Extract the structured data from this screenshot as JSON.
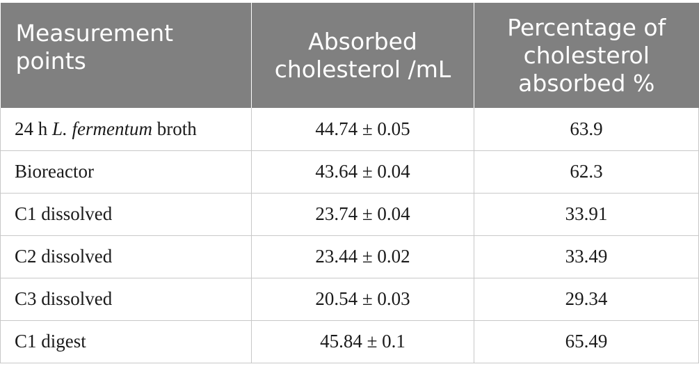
{
  "table": {
    "headers": [
      "Measurement points",
      "Absorbed cholesterol /mL",
      "Percentage of cholesterol absorbed %"
    ],
    "rows": [
      {
        "point_prefix": "24 h ",
        "point_italic": "L. fermentum",
        "point_suffix": " broth",
        "absorbed": "44.74 ± 0.05",
        "percentage": "63.9"
      },
      {
        "point_prefix": "Bioreactor",
        "point_italic": "",
        "point_suffix": "",
        "absorbed": "43.64 ± 0.04",
        "percentage": "62.3"
      },
      {
        "point_prefix": "C1 dissolved",
        "point_italic": "",
        "point_suffix": "",
        "absorbed": "23.74 ± 0.04",
        "percentage": "33.91"
      },
      {
        "point_prefix": "C2 dissolved",
        "point_italic": "",
        "point_suffix": "",
        "absorbed": "23.44 ± 0.02",
        "percentage": "33.49"
      },
      {
        "point_prefix": "C3 dissolved",
        "point_italic": "",
        "point_suffix": "",
        "absorbed": "20.54 ± 0.03",
        "percentage": "29.34"
      },
      {
        "point_prefix": "C1 digest",
        "point_italic": "",
        "point_suffix": "",
        "absorbed": "45.84 ± 0.1",
        "percentage": "65.49"
      }
    ]
  },
  "colors": {
    "header_bg": "#808080",
    "header_text": "#ffffff",
    "grid": "#c8c8c8"
  }
}
